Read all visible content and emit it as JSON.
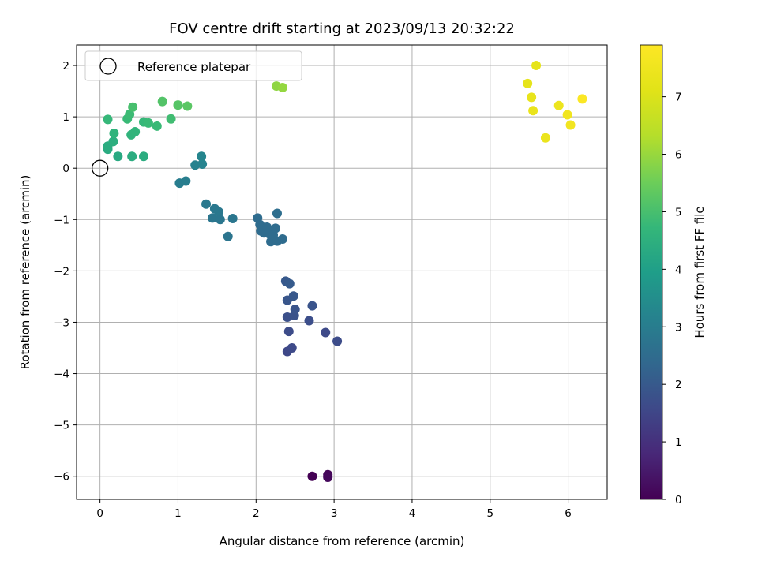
{
  "chart_data": {
    "type": "scatter",
    "title": "FOV centre drift starting at 2023/09/13 20:32:22",
    "xlabel": "Angular distance from reference (arcmin)",
    "ylabel": "Rotation from reference (arcmin)",
    "xlim": [
      -0.3,
      6.5
    ],
    "ylim": [
      -6.45,
      2.4
    ],
    "xticks": [
      0,
      1,
      2,
      3,
      4,
      5,
      6
    ],
    "yticks": [
      -6,
      -5,
      -4,
      -3,
      -2,
      -1,
      0,
      1,
      2
    ],
    "xtick_labels": [
      "0",
      "1",
      "2",
      "3",
      "4",
      "5",
      "6"
    ],
    "ytick_labels": [
      "−6",
      "−5",
      "−4",
      "−3",
      "−2",
      "−1",
      "0",
      "1",
      "2"
    ],
    "grid": true,
    "legend": {
      "placement": "top-left",
      "entries": [
        "Reference platepar"
      ]
    },
    "reference_point": {
      "x": 0,
      "y": 0,
      "label": "Reference platepar"
    },
    "colorbar": {
      "label": "Hours from first FF file",
      "colormap": "viridis",
      "range": [
        0,
        7.9
      ],
      "ticks": [
        0,
        1,
        2,
        3,
        4,
        5,
        6,
        7
      ],
      "tick_labels": [
        "0",
        "1",
        "2",
        "3",
        "4",
        "5",
        "6",
        "7"
      ]
    },
    "points": [
      {
        "x": 2.72,
        "y": -6.0,
        "h": 0.0
      },
      {
        "x": 2.92,
        "y": -5.97,
        "h": 0.1
      },
      {
        "x": 2.92,
        "y": -6.02,
        "h": 0.15
      },
      {
        "x": 2.4,
        "y": -3.57,
        "h": 1.55
      },
      {
        "x": 2.46,
        "y": -3.5,
        "h": 1.6
      },
      {
        "x": 2.42,
        "y": -3.18,
        "h": 1.65
      },
      {
        "x": 2.89,
        "y": -3.2,
        "h": 1.6
      },
      {
        "x": 3.04,
        "y": -3.37,
        "h": 1.65
      },
      {
        "x": 2.68,
        "y": -2.97,
        "h": 1.7
      },
      {
        "x": 2.4,
        "y": -2.9,
        "h": 1.75
      },
      {
        "x": 2.49,
        "y": -2.87,
        "h": 1.8
      },
      {
        "x": 2.5,
        "y": -2.75,
        "h": 1.85
      },
      {
        "x": 2.72,
        "y": -2.68,
        "h": 1.85
      },
      {
        "x": 2.4,
        "y": -2.57,
        "h": 1.9
      },
      {
        "x": 2.48,
        "y": -2.49,
        "h": 1.95
      },
      {
        "x": 2.38,
        "y": -2.2,
        "h": 2.0
      },
      {
        "x": 2.43,
        "y": -2.25,
        "h": 2.05
      },
      {
        "x": 2.02,
        "y": -0.97,
        "h": 2.5
      },
      {
        "x": 2.05,
        "y": -1.1,
        "h": 2.5
      },
      {
        "x": 2.06,
        "y": -1.22,
        "h": 2.5
      },
      {
        "x": 2.1,
        "y": -1.26,
        "h": 2.5
      },
      {
        "x": 2.14,
        "y": -1.15,
        "h": 2.5
      },
      {
        "x": 2.17,
        "y": -1.28,
        "h": 2.5
      },
      {
        "x": 2.19,
        "y": -1.43,
        "h": 2.5
      },
      {
        "x": 2.22,
        "y": -1.3,
        "h": 2.5
      },
      {
        "x": 2.25,
        "y": -1.17,
        "h": 2.5
      },
      {
        "x": 2.27,
        "y": -1.42,
        "h": 2.5
      },
      {
        "x": 2.34,
        "y": -1.38,
        "h": 2.5
      },
      {
        "x": 2.27,
        "y": -0.88,
        "h": 2.55
      },
      {
        "x": 1.64,
        "y": -1.33,
        "h": 2.75
      },
      {
        "x": 1.7,
        "y": -0.98,
        "h": 2.8
      },
      {
        "x": 1.44,
        "y": -0.97,
        "h": 2.8
      },
      {
        "x": 1.47,
        "y": -0.79,
        "h": 2.85
      },
      {
        "x": 1.52,
        "y": -0.85,
        "h": 2.85
      },
      {
        "x": 1.54,
        "y": -1.0,
        "h": 2.8
      },
      {
        "x": 1.36,
        "y": -0.7,
        "h": 2.9
      },
      {
        "x": 1.02,
        "y": -0.29,
        "h": 3.0
      },
      {
        "x": 1.1,
        "y": -0.25,
        "h": 3.05
      },
      {
        "x": 1.22,
        "y": 0.06,
        "h": 3.15
      },
      {
        "x": 1.31,
        "y": 0.08,
        "h": 3.2
      },
      {
        "x": 1.3,
        "y": 0.23,
        "h": 3.25
      },
      {
        "x": 0.1,
        "y": 0.37,
        "h": 4.35
      },
      {
        "x": 0.1,
        "y": 0.43,
        "h": 4.4
      },
      {
        "x": 0.17,
        "y": 0.52,
        "h": 4.45
      },
      {
        "x": 0.23,
        "y": 0.23,
        "h": 4.3
      },
      {
        "x": 0.41,
        "y": 0.23,
        "h": 4.4
      },
      {
        "x": 0.56,
        "y": 0.23,
        "h": 4.4
      },
      {
        "x": 0.1,
        "y": 0.95,
        "h": 4.75
      },
      {
        "x": 0.18,
        "y": 0.68,
        "h": 4.6
      },
      {
        "x": 0.35,
        "y": 0.96,
        "h": 4.8
      },
      {
        "x": 0.38,
        "y": 1.05,
        "h": 4.85
      },
      {
        "x": 0.4,
        "y": 0.65,
        "h": 4.6
      },
      {
        "x": 0.45,
        "y": 0.71,
        "h": 4.65
      },
      {
        "x": 0.56,
        "y": 0.9,
        "h": 4.75
      },
      {
        "x": 0.62,
        "y": 0.88,
        "h": 4.8
      },
      {
        "x": 0.73,
        "y": 0.82,
        "h": 4.8
      },
      {
        "x": 0.91,
        "y": 0.96,
        "h": 4.9
      },
      {
        "x": 0.42,
        "y": 1.19,
        "h": 5.0
      },
      {
        "x": 0.8,
        "y": 1.3,
        "h": 5.15
      },
      {
        "x": 1.0,
        "y": 1.23,
        "h": 5.2
      },
      {
        "x": 1.12,
        "y": 1.21,
        "h": 5.25
      },
      {
        "x": 2.26,
        "y": 1.6,
        "h": 5.9
      },
      {
        "x": 2.34,
        "y": 1.57,
        "h": 5.95
      },
      {
        "x": 5.48,
        "y": 1.65,
        "h": 7.25
      },
      {
        "x": 5.53,
        "y": 1.38,
        "h": 7.3
      },
      {
        "x": 5.59,
        "y": 2.0,
        "h": 7.25
      },
      {
        "x": 5.55,
        "y": 1.12,
        "h": 7.35
      },
      {
        "x": 5.71,
        "y": 0.59,
        "h": 7.4
      },
      {
        "x": 5.88,
        "y": 1.22,
        "h": 7.45
      },
      {
        "x": 5.99,
        "y": 1.04,
        "h": 7.55
      },
      {
        "x": 6.03,
        "y": 0.84,
        "h": 7.6
      },
      {
        "x": 6.18,
        "y": 1.35,
        "h": 7.85
      }
    ]
  }
}
